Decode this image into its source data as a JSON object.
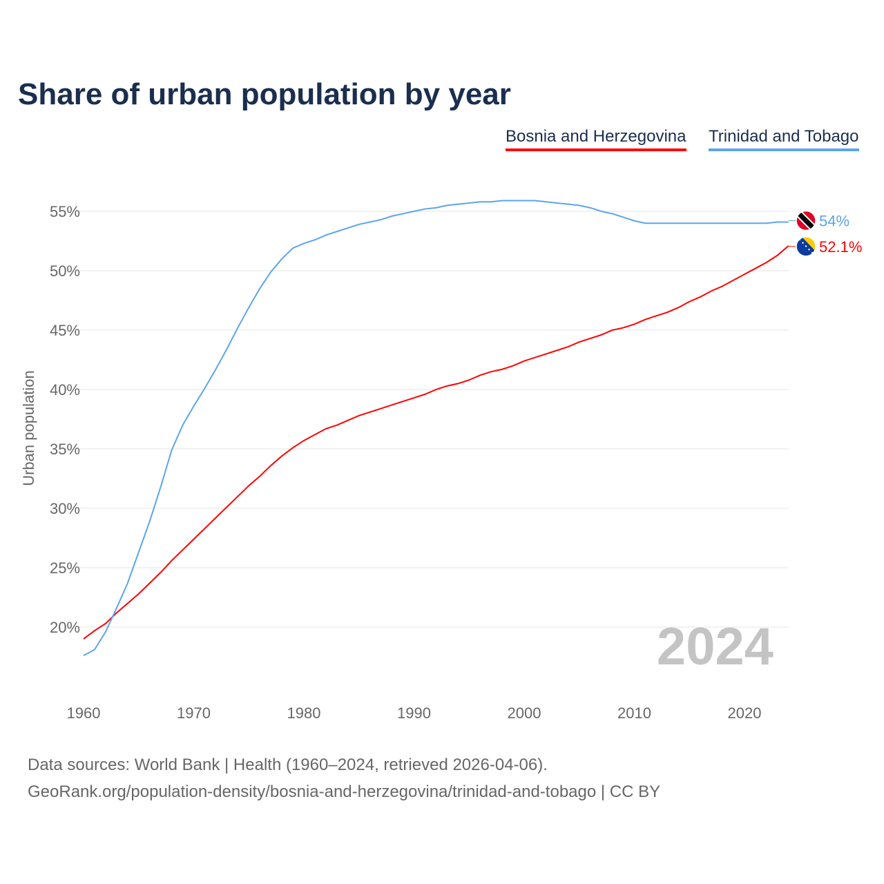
{
  "chart_data": {
    "type": "line",
    "title": "Share of urban population by year",
    "ylabel": "Urban population",
    "xlabel": "",
    "ylim": [
      15,
      57
    ],
    "xlim": [
      1960,
      2024
    ],
    "yticks": [
      20,
      25,
      30,
      35,
      40,
      45,
      50,
      55
    ],
    "ytick_labels": [
      "20%",
      "25%",
      "30%",
      "35%",
      "40%",
      "45%",
      "50%",
      "55%"
    ],
    "xticks": [
      1960,
      1970,
      1980,
      1990,
      2000,
      2010,
      2020
    ],
    "xtick_labels": [
      "1960",
      "1970",
      "1980",
      "1990",
      "2000",
      "2010",
      "2020"
    ],
    "grid": true,
    "legend_placement": "top-right",
    "watermark_year": "2024",
    "x": [
      1960,
      1961,
      1962,
      1963,
      1964,
      1965,
      1966,
      1967,
      1968,
      1969,
      1970,
      1971,
      1972,
      1973,
      1974,
      1975,
      1976,
      1977,
      1978,
      1979,
      1980,
      1981,
      1982,
      1983,
      1984,
      1985,
      1986,
      1987,
      1988,
      1989,
      1990,
      1991,
      1992,
      1993,
      1994,
      1995,
      1996,
      1997,
      1998,
      1999,
      2000,
      2001,
      2002,
      2003,
      2004,
      2005,
      2006,
      2007,
      2008,
      2009,
      2010,
      2011,
      2012,
      2013,
      2014,
      2015,
      2016,
      2017,
      2018,
      2019,
      2020,
      2021,
      2022,
      2023,
      2024
    ],
    "series": [
      {
        "name": "Bosnia and Herzegovina",
        "color": "#ff0000",
        "end_label": "52.1%",
        "flag": "ba",
        "values": [
          19.0,
          19.7,
          20.3,
          21.2,
          22.0,
          22.8,
          23.7,
          24.6,
          25.6,
          26.5,
          27.4,
          28.3,
          29.2,
          30.1,
          31.0,
          31.9,
          32.7,
          33.6,
          34.4,
          35.1,
          35.7,
          36.2,
          36.7,
          37.0,
          37.4,
          37.8,
          38.1,
          38.4,
          38.7,
          39.0,
          39.3,
          39.6,
          40.0,
          40.3,
          40.5,
          40.8,
          41.2,
          41.5,
          41.7,
          42.0,
          42.4,
          42.7,
          43.0,
          43.3,
          43.6,
          44.0,
          44.3,
          44.6,
          45.0,
          45.2,
          45.5,
          45.9,
          46.2,
          46.5,
          46.9,
          47.4,
          47.8,
          48.3,
          48.7,
          49.2,
          49.7,
          50.2,
          50.7,
          51.3,
          52.1
        ]
      },
      {
        "name": "Trinidad and Tobago",
        "color": "#5ba4f0",
        "end_label": "54%",
        "flag": "tt",
        "values": [
          17.6,
          18.1,
          19.6,
          21.6,
          23.7,
          26.3,
          28.9,
          31.8,
          34.9,
          37.0,
          38.6,
          40.1,
          41.7,
          43.4,
          45.2,
          46.9,
          48.5,
          49.9,
          51.0,
          51.9,
          52.3,
          52.6,
          53.0,
          53.3,
          53.6,
          53.9,
          54.1,
          54.3,
          54.6,
          54.8,
          55.0,
          55.2,
          55.3,
          55.5,
          55.6,
          55.7,
          55.8,
          55.8,
          55.9,
          55.9,
          55.9,
          55.9,
          55.8,
          55.7,
          55.6,
          55.5,
          55.3,
          55.0,
          54.8,
          54.5,
          54.2,
          54.0,
          54.0,
          54.0,
          54.0,
          54.0,
          54.0,
          54.0,
          54.0,
          54.0,
          54.0,
          54.0,
          54.0,
          54.1,
          54.1
        ]
      }
    ]
  },
  "footer": {
    "line1": "Data sources: World Bank | Health (1960–2024, retrieved 2026-04-06).",
    "line2": "GeoRank.org/population-density/bosnia-and-herzegovina/trinidad-and-tobago | CC BY"
  }
}
